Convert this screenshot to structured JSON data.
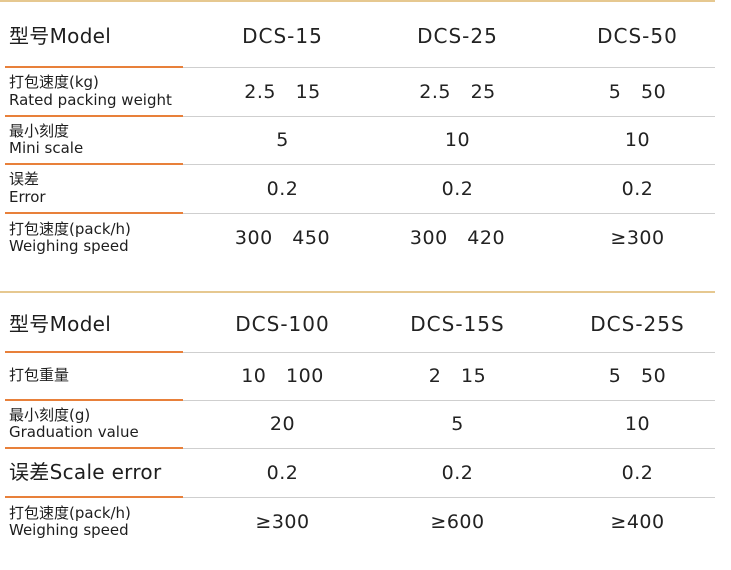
{
  "tables": [
    {
      "header": {
        "label": "型号Model",
        "cols": [
          "DCS-15",
          "DCS-25",
          "DCS-50"
        ]
      },
      "rows": [
        {
          "label_zh": "打包速度(kg)",
          "label_en": "Rated packing weight",
          "values": [
            "2.5   15",
            "2.5   25",
            "5   50"
          ]
        },
        {
          "label_zh": "最小刻度",
          "label_en": "Mini scale",
          "values": [
            "5",
            "10",
            "10"
          ]
        },
        {
          "label_zh": "误差",
          "label_en": "Error",
          "values": [
            "0.2",
            "0.2",
            "0.2"
          ]
        },
        {
          "label_zh": "打包速度(pack/h)",
          "label_en": "Weighing speed",
          "values": [
            "300   450",
            "300   420",
            "≥300"
          ]
        }
      ]
    },
    {
      "header": {
        "label": "型号Model",
        "cols": [
          "DCS-100",
          "DCS-15S",
          "DCS-25S"
        ]
      },
      "rows": [
        {
          "label_zh": "打包重量",
          "label_en": "",
          "values": [
            "10   100",
            "2   15",
            "5   50"
          ]
        },
        {
          "label_zh": "最小刻度(g)",
          "label_en": "Graduation value",
          "values": [
            "20",
            "5",
            "10"
          ]
        },
        {
          "label_zh": "误差Scale error",
          "label_en": "",
          "values": [
            "0.2",
            "0.2",
            "0.2"
          ]
        },
        {
          "label_zh": "打包速度(pack/h)",
          "label_en": "Weighing speed",
          "values": [
            "≥300",
            "≥600",
            "≥400"
          ]
        }
      ]
    }
  ],
  "colors": {
    "top_rule": "#e6c890",
    "label_separator": "#e8803a",
    "row_separator": "#cfcfcf"
  }
}
